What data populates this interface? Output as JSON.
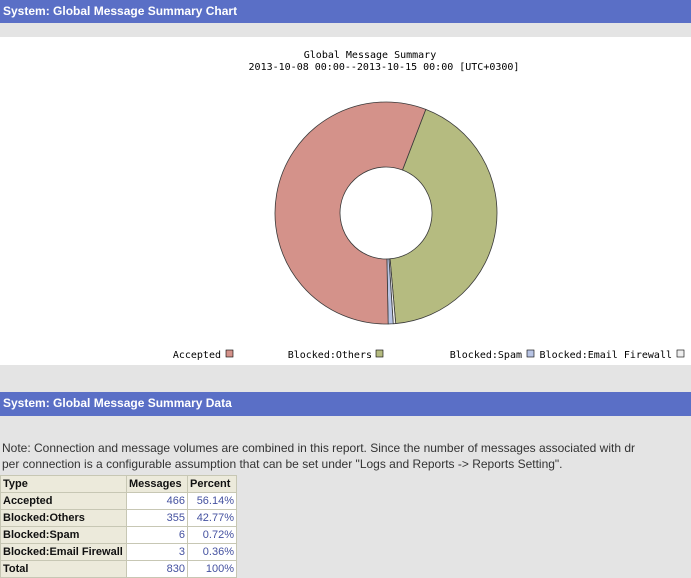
{
  "sections": {
    "chart_title": "System: Global Message Summary Chart",
    "data_title": "System: Global Message Summary Data"
  },
  "chart_data": {
    "type": "pie",
    "title": "Global Message Summary",
    "subtitle": "2013-10-08 00:00--2013-10-15 00:00 [UTC+0300]",
    "donut": true,
    "legend_position": "bottom",
    "categories": [
      "Accepted",
      "Blocked:Others",
      "Blocked:Spam",
      "Blocked:Email Firewall"
    ],
    "values": [
      466,
      355,
      6,
      3
    ],
    "colors": [
      "#d4928a",
      "#b5bb80",
      "#b8c4e4",
      "#eeeeee"
    ]
  },
  "note": {
    "line1": "Note: Connection and message volumes are combined in this report. Since the number of messages associated with dr",
    "line2": "per connection is a configurable assumption that can be set under \"Logs and Reports -> Reports Setting\"."
  },
  "table": {
    "headers": [
      "Type",
      "Messages",
      "Percent"
    ],
    "rows": [
      {
        "type": "Accepted",
        "messages": "466",
        "percent": "56.14%"
      },
      {
        "type": "Blocked:Others",
        "messages": "355",
        "percent": "42.77%"
      },
      {
        "type": "Blocked:Spam",
        "messages": "6",
        "percent": "0.72%"
      },
      {
        "type": "Blocked:Email Firewall",
        "messages": "3",
        "percent": "0.36%"
      }
    ],
    "total": {
      "type": "Total",
      "messages": "830",
      "percent": "100%"
    }
  }
}
